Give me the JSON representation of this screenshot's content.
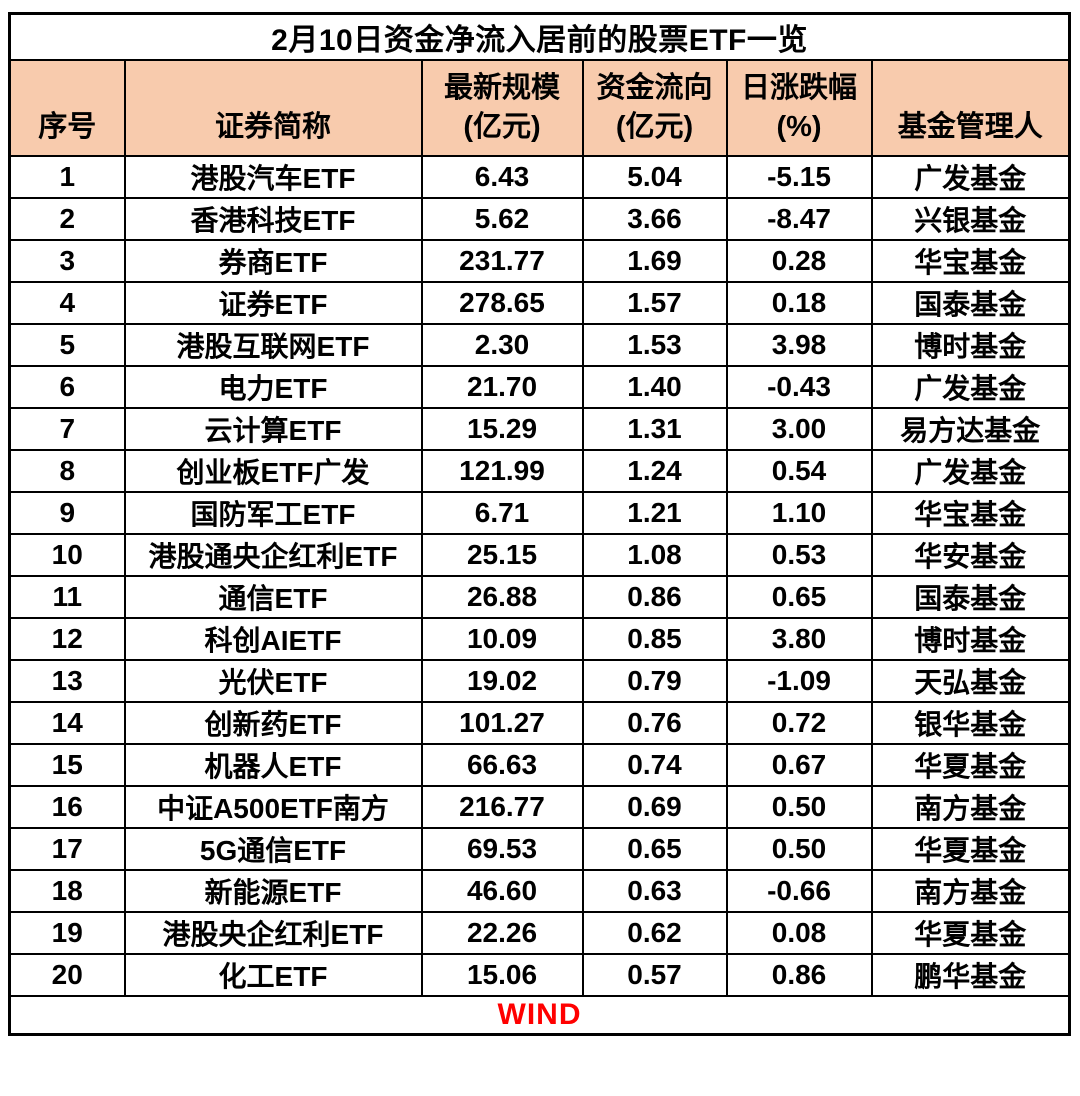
{
  "colors": {
    "header_bg": "#F8CBAD",
    "grid": "#000000",
    "source_text": "#FF0000",
    "row_bg": "#FFFFFF"
  },
  "chart_data": {
    "type": "table",
    "title": "2月10日资金净流入居前的股票ETF一览",
    "columns": [
      "序号",
      "证券简称",
      "最新规模\n(亿元)",
      "资金流向\n(亿元)",
      "日涨跌幅\n(%)",
      "基金管理人"
    ],
    "column_keys": [
      "index",
      "security_name",
      "latest_scale_100m_yuan",
      "fund_flow_100m_yuan",
      "daily_change_pct",
      "fund_manager"
    ],
    "rows": [
      [
        "1",
        "港股汽车ETF",
        "6.43",
        "5.04",
        "-5.15",
        "广发基金"
      ],
      [
        "2",
        "香港科技ETF",
        "5.62",
        "3.66",
        "-8.47",
        "兴银基金"
      ],
      [
        "3",
        "券商ETF",
        "231.77",
        "1.69",
        "0.28",
        "华宝基金"
      ],
      [
        "4",
        "证券ETF",
        "278.65",
        "1.57",
        "0.18",
        "国泰基金"
      ],
      [
        "5",
        "港股互联网ETF",
        "2.30",
        "1.53",
        "3.98",
        "博时基金"
      ],
      [
        "6",
        "电力ETF",
        "21.70",
        "1.40",
        "-0.43",
        "广发基金"
      ],
      [
        "7",
        "云计算ETF",
        "15.29",
        "1.31",
        "3.00",
        "易方达基金"
      ],
      [
        "8",
        "创业板ETF广发",
        "121.99",
        "1.24",
        "0.54",
        "广发基金"
      ],
      [
        "9",
        "国防军工ETF",
        "6.71",
        "1.21",
        "1.10",
        "华宝基金"
      ],
      [
        "10",
        "港股通央企红利ETF",
        "25.15",
        "1.08",
        "0.53",
        "华安基金"
      ],
      [
        "11",
        "通信ETF",
        "26.88",
        "0.86",
        "0.65",
        "国泰基金"
      ],
      [
        "12",
        "科创AIETF",
        "10.09",
        "0.85",
        "3.80",
        "博时基金"
      ],
      [
        "13",
        "光伏ETF",
        "19.02",
        "0.79",
        "-1.09",
        "天弘基金"
      ],
      [
        "14",
        "创新药ETF",
        "101.27",
        "0.76",
        "0.72",
        "银华基金"
      ],
      [
        "15",
        "机器人ETF",
        "66.63",
        "0.74",
        "0.67",
        "华夏基金"
      ],
      [
        "16",
        "中证A500ETF南方",
        "216.77",
        "0.69",
        "0.50",
        "南方基金"
      ],
      [
        "17",
        "5G通信ETF",
        "69.53",
        "0.65",
        "0.50",
        "华夏基金"
      ],
      [
        "18",
        "新能源ETF",
        "46.60",
        "0.63",
        "-0.66",
        "南方基金"
      ],
      [
        "19",
        "港股央企红利ETF",
        "22.26",
        "0.62",
        "0.08",
        "华夏基金"
      ],
      [
        "20",
        "化工ETF",
        "15.06",
        "0.57",
        "0.86",
        "鹏华基金"
      ]
    ],
    "source": "WIND",
    "grid": true,
    "legend_position": "none"
  }
}
